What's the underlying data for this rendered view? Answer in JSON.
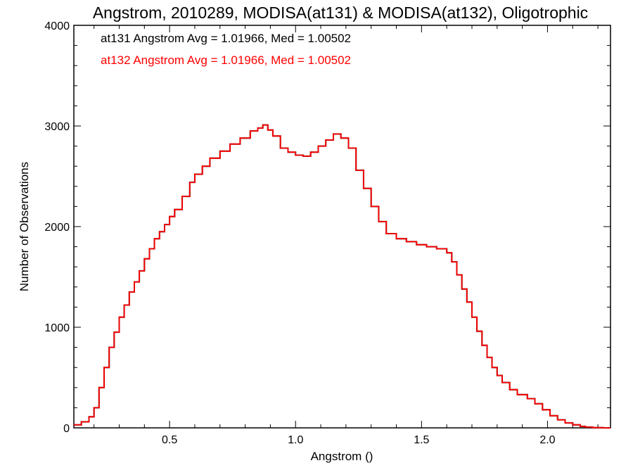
{
  "chart_data": {
    "type": "line",
    "title": "Angstrom, 2010289, MODISA(at131) & MODISA(at132), Oligotrophic",
    "xlabel": "Angstrom ()",
    "ylabel": "Number of Observations",
    "xlim": [
      0.12,
      2.25
    ],
    "ylim": [
      0,
      4000
    ],
    "x_ticks": [
      0.5,
      1.0,
      1.5,
      2.0
    ],
    "x_tick_labels": [
      "0.5",
      "1.0",
      "1.5",
      "2.0"
    ],
    "y_ticks": [
      0,
      1000,
      2000,
      3000,
      4000
    ],
    "y_tick_labels": [
      "0",
      "1000",
      "2000",
      "3000",
      "4000"
    ],
    "step_style": "histogram-step",
    "grid": false,
    "annotations": [
      {
        "text": "at131 Angstrom Avg = 1.01966, Med = 1.00502",
        "color": "#000000"
      },
      {
        "text": "at132 Angstrom Avg = 1.01966, Med = 1.00502",
        "color": "#ff0000"
      }
    ],
    "series": [
      {
        "color": "#000000",
        "x": [
          0.12,
          0.15,
          0.18,
          0.2,
          0.22,
          0.24,
          0.26,
          0.28,
          0.3,
          0.32,
          0.34,
          0.36,
          0.38,
          0.4,
          0.42,
          0.44,
          0.46,
          0.48,
          0.5,
          0.52,
          0.55,
          0.58,
          0.6,
          0.63,
          0.66,
          0.7,
          0.74,
          0.78,
          0.82,
          0.85,
          0.87,
          0.89,
          0.91,
          0.94,
          0.97,
          1.0,
          1.03,
          1.06,
          1.09,
          1.12,
          1.15,
          1.18,
          1.21,
          1.24,
          1.27,
          1.3,
          1.33,
          1.36,
          1.4,
          1.44,
          1.48,
          1.52,
          1.56,
          1.6,
          1.62,
          1.64,
          1.66,
          1.68,
          1.7,
          1.72,
          1.74,
          1.76,
          1.78,
          1.8,
          1.82,
          1.85,
          1.88,
          1.92,
          1.95,
          1.98,
          2.01,
          2.04,
          2.07,
          2.1,
          2.13,
          2.15,
          2.18,
          2.22
        ],
        "y": [
          30,
          60,
          110,
          200,
          400,
          600,
          800,
          950,
          1100,
          1220,
          1350,
          1450,
          1560,
          1680,
          1780,
          1880,
          1950,
          2020,
          2100,
          2170,
          2300,
          2440,
          2520,
          2600,
          2680,
          2750,
          2820,
          2880,
          2950,
          2980,
          3010,
          2960,
          2900,
          2780,
          2740,
          2710,
          2700,
          2740,
          2800,
          2860,
          2920,
          2880,
          2780,
          2560,
          2380,
          2200,
          2050,
          1930,
          1880,
          1850,
          1820,
          1800,
          1780,
          1740,
          1650,
          1520,
          1380,
          1250,
          1100,
          960,
          820,
          700,
          600,
          520,
          450,
          380,
          330,
          290,
          240,
          180,
          120,
          80,
          50,
          30,
          15,
          8,
          2,
          0
        ]
      },
      {
        "color": "#ff0000",
        "x": [
          0.12,
          0.15,
          0.18,
          0.2,
          0.22,
          0.24,
          0.26,
          0.28,
          0.3,
          0.32,
          0.34,
          0.36,
          0.38,
          0.4,
          0.42,
          0.44,
          0.46,
          0.48,
          0.5,
          0.52,
          0.55,
          0.58,
          0.6,
          0.63,
          0.66,
          0.7,
          0.74,
          0.78,
          0.82,
          0.85,
          0.87,
          0.89,
          0.91,
          0.94,
          0.97,
          1.0,
          1.03,
          1.06,
          1.09,
          1.12,
          1.15,
          1.18,
          1.21,
          1.24,
          1.27,
          1.3,
          1.33,
          1.36,
          1.4,
          1.44,
          1.48,
          1.52,
          1.56,
          1.6,
          1.62,
          1.64,
          1.66,
          1.68,
          1.7,
          1.72,
          1.74,
          1.76,
          1.78,
          1.8,
          1.82,
          1.85,
          1.88,
          1.92,
          1.95,
          1.98,
          2.01,
          2.04,
          2.07,
          2.1,
          2.13,
          2.15,
          2.18,
          2.22
        ],
        "y": [
          30,
          60,
          110,
          200,
          400,
          600,
          800,
          950,
          1100,
          1220,
          1350,
          1450,
          1560,
          1680,
          1780,
          1880,
          1950,
          2020,
          2100,
          2170,
          2300,
          2440,
          2520,
          2600,
          2680,
          2750,
          2820,
          2880,
          2950,
          2980,
          3010,
          2960,
          2900,
          2780,
          2740,
          2710,
          2700,
          2740,
          2800,
          2860,
          2920,
          2880,
          2780,
          2560,
          2380,
          2200,
          2050,
          1930,
          1880,
          1850,
          1820,
          1800,
          1780,
          1740,
          1650,
          1520,
          1380,
          1250,
          1100,
          960,
          820,
          700,
          600,
          520,
          450,
          380,
          330,
          290,
          240,
          180,
          120,
          80,
          50,
          30,
          15,
          8,
          2,
          0
        ]
      }
    ]
  }
}
